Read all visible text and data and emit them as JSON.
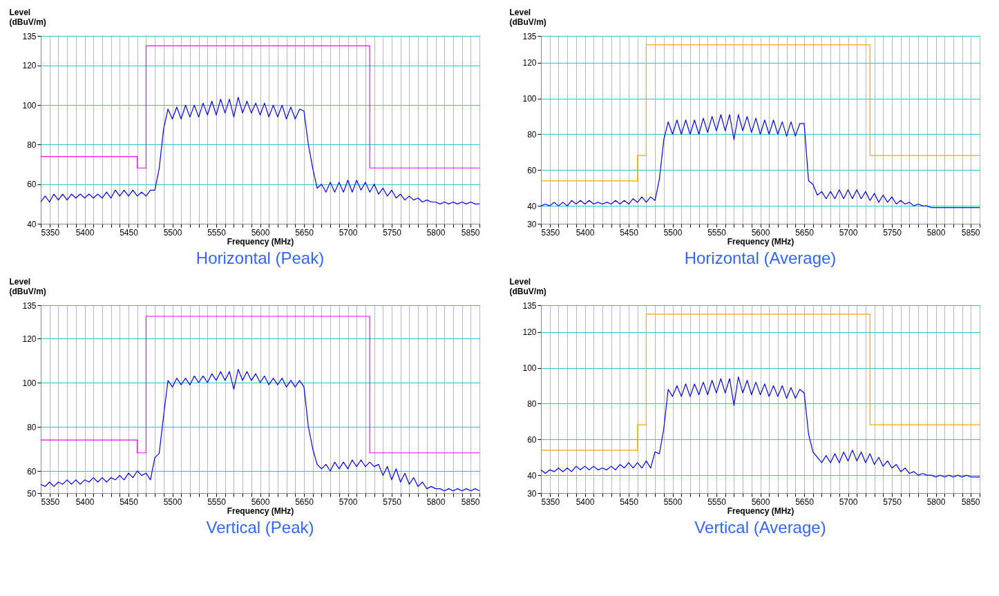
{
  "chart_data": [
    {
      "type": "line",
      "title": "Horizontal (Peak)",
      "xlabel": "Frequency (MHz)",
      "ylabel": "Level (dBuV/m)",
      "xlim": [
        5350,
        5850
      ],
      "ylim": [
        40,
        135
      ],
      "yticks": [
        40,
        60,
        80,
        100,
        120,
        135
      ],
      "xticks": [
        5350,
        {
          "value": 5360,
          "label": null
        },
        {
          "value": 5370,
          "label": null
        },
        {
          "value": 5380,
          "label": null
        },
        {
          "value": 5390,
          "label": null
        },
        5400,
        {
          "value": 5410,
          "label": null
        },
        {
          "value": 5420,
          "label": null
        },
        {
          "value": 5430,
          "label": null
        },
        {
          "value": 5440,
          "label": null
        },
        5450,
        {
          "value": 5460,
          "label": null
        },
        {
          "value": 5470,
          "label": null
        },
        {
          "value": 5480,
          "label": null
        },
        {
          "value": 5490,
          "label": null
        },
        5500,
        {
          "value": 5510,
          "label": null
        },
        {
          "value": 5520,
          "label": null
        },
        {
          "value": 5530,
          "label": null
        },
        {
          "value": 5540,
          "label": null
        },
        5550,
        {
          "value": 5560,
          "label": null
        },
        {
          "value": 5570,
          "label": null
        },
        {
          "value": 5580,
          "label": null
        },
        {
          "value": 5590,
          "label": null
        },
        5600,
        {
          "value": 5610,
          "label": null
        },
        {
          "value": 5620,
          "label": null
        },
        {
          "value": 5630,
          "label": null
        },
        {
          "value": 5640,
          "label": null
        },
        5650,
        {
          "value": 5660,
          "label": null
        },
        {
          "value": 5670,
          "label": null
        },
        {
          "value": 5680,
          "label": null
        },
        {
          "value": 5690,
          "label": null
        },
        5700,
        {
          "value": 5710,
          "label": null
        },
        {
          "value": 5720,
          "label": null
        },
        {
          "value": 5730,
          "label": null
        },
        {
          "value": 5740,
          "label": null
        },
        5750,
        {
          "value": 5760,
          "label": null
        },
        {
          "value": 5770,
          "label": null
        },
        {
          "value": 5780,
          "label": null
        },
        {
          "value": 5790,
          "label": null
        },
        5800,
        {
          "value": 5810,
          "label": null
        },
        {
          "value": 5820,
          "label": null
        },
        {
          "value": 5830,
          "label": null
        },
        {
          "value": 5840,
          "label": null
        },
        5850
      ],
      "grid": true,
      "x": [
        5350,
        5355,
        5360,
        5365,
        5370,
        5375,
        5380,
        5385,
        5390,
        5395,
        5400,
        5405,
        5410,
        5415,
        5420,
        5425,
        5430,
        5435,
        5440,
        5445,
        5450,
        5455,
        5460,
        5465,
        5470,
        5475,
        5480,
        5485,
        5490,
        5495,
        5500,
        5505,
        5510,
        5515,
        5520,
        5525,
        5530,
        5535,
        5540,
        5545,
        5550,
        5555,
        5560,
        5565,
        5570,
        5575,
        5580,
        5585,
        5590,
        5595,
        5600,
        5605,
        5610,
        5615,
        5620,
        5625,
        5630,
        5635,
        5640,
        5645,
        5650,
        5655,
        5660,
        5665,
        5670,
        5675,
        5680,
        5685,
        5690,
        5695,
        5700,
        5705,
        5710,
        5715,
        5720,
        5725,
        5730,
        5735,
        5740,
        5745,
        5750,
        5755,
        5760,
        5765,
        5770,
        5775,
        5780,
        5785,
        5790,
        5795,
        5800,
        5805,
        5810,
        5815,
        5820,
        5825,
        5830,
        5835,
        5840,
        5845,
        5850
      ],
      "series": [
        {
          "type": "step",
          "color": "#ff00ff",
          "x": [
            5350,
            5460,
            5470,
            5725,
            5850
          ],
          "values": [
            74,
            68.2,
            130,
            68.2,
            68.2
          ]
        },
        {
          "type": "line",
          "color": "#0000ff",
          "values": [
            51,
            54,
            51,
            55,
            52,
            55,
            52,
            55,
            53,
            55,
            53,
            55,
            53,
            55,
            53,
            56,
            53,
            57,
            54,
            57,
            54,
            57,
            54,
            56,
            54,
            57,
            57,
            68,
            88,
            98,
            93,
            99,
            93,
            100,
            94,
            100,
            94,
            101,
            95,
            102,
            95,
            103,
            96,
            103,
            94,
            104,
            96,
            102,
            96,
            101,
            95,
            101,
            94,
            100,
            94,
            100,
            93,
            99,
            93,
            98,
            97,
            80,
            68,
            58,
            60,
            56,
            61,
            56,
            61,
            56,
            62,
            56,
            62,
            57,
            61,
            56,
            60,
            55,
            58,
            54,
            57,
            53,
            55,
            52,
            54,
            52,
            53,
            51,
            52,
            51,
            51,
            50,
            51,
            50,
            51,
            50,
            51,
            50,
            51,
            50,
            50
          ]
        }
      ]
    },
    {
      "type": "line",
      "title": "Horizontal (Average)",
      "xlabel": "Frequency (MHz)",
      "ylabel": "Level (dBuV/m)",
      "xlim": [
        5350,
        5850
      ],
      "ylim": [
        30,
        135
      ],
      "yticks": [
        30,
        40,
        60,
        80,
        100,
        120,
        135
      ],
      "xticks": [
        5350,
        {
          "value": 5360,
          "label": null
        },
        {
          "value": 5370,
          "label": null
        },
        {
          "value": 5380,
          "label": null
        },
        {
          "value": 5390,
          "label": null
        },
        5400,
        {
          "value": 5410,
          "label": null
        },
        {
          "value": 5420,
          "label": null
        },
        {
          "value": 5430,
          "label": null
        },
        {
          "value": 5440,
          "label": null
        },
        5450,
        {
          "value": 5460,
          "label": null
        },
        {
          "value": 5470,
          "label": null
        },
        {
          "value": 5480,
          "label": null
        },
        {
          "value": 5490,
          "label": null
        },
        5500,
        {
          "value": 5510,
          "label": null
        },
        {
          "value": 5520,
          "label": null
        },
        {
          "value": 5530,
          "label": null
        },
        {
          "value": 5540,
          "label": null
        },
        5550,
        {
          "value": 5560,
          "label": null
        },
        {
          "value": 5570,
          "label": null
        },
        {
          "value": 5580,
          "label": null
        },
        {
          "value": 5590,
          "label": null
        },
        5600,
        {
          "value": 5610,
          "label": null
        },
        {
          "value": 5620,
          "label": null
        },
        {
          "value": 5630,
          "label": null
        },
        {
          "value": 5640,
          "label": null
        },
        5650,
        {
          "value": 5660,
          "label": null
        },
        {
          "value": 5670,
          "label": null
        },
        {
          "value": 5680,
          "label": null
        },
        {
          "value": 5690,
          "label": null
        },
        5700,
        {
          "value": 5710,
          "label": null
        },
        {
          "value": 5720,
          "label": null
        },
        {
          "value": 5730,
          "label": null
        },
        {
          "value": 5740,
          "label": null
        },
        5750,
        {
          "value": 5760,
          "label": null
        },
        {
          "value": 5770,
          "label": null
        },
        {
          "value": 5780,
          "label": null
        },
        {
          "value": 5790,
          "label": null
        },
        5800,
        {
          "value": 5810,
          "label": null
        },
        {
          "value": 5820,
          "label": null
        },
        {
          "value": 5830,
          "label": null
        },
        {
          "value": 5840,
          "label": null
        },
        5850
      ],
      "grid": true,
      "x": [
        5350,
        5355,
        5360,
        5365,
        5370,
        5375,
        5380,
        5385,
        5390,
        5395,
        5400,
        5405,
        5410,
        5415,
        5420,
        5425,
        5430,
        5435,
        5440,
        5445,
        5450,
        5455,
        5460,
        5465,
        5470,
        5475,
        5480,
        5485,
        5490,
        5495,
        5500,
        5505,
        5510,
        5515,
        5520,
        5525,
        5530,
        5535,
        5540,
        5545,
        5550,
        5555,
        5560,
        5565,
        5570,
        5575,
        5580,
        5585,
        5590,
        5595,
        5600,
        5605,
        5610,
        5615,
        5620,
        5625,
        5630,
        5635,
        5640,
        5645,
        5650,
        5655,
        5660,
        5665,
        5670,
        5675,
        5680,
        5685,
        5690,
        5695,
        5700,
        5705,
        5710,
        5715,
        5720,
        5725,
        5730,
        5735,
        5740,
        5745,
        5750,
        5755,
        5760,
        5765,
        5770,
        5775,
        5780,
        5785,
        5790,
        5795,
        5800,
        5805,
        5810,
        5815,
        5820,
        5825,
        5830,
        5835,
        5840,
        5845,
        5850
      ],
      "series": [
        {
          "type": "step",
          "color": "#ffa500",
          "x": [
            5350,
            5460,
            5470,
            5725,
            5850
          ],
          "values": [
            54,
            68.2,
            130,
            68.2,
            68.2
          ]
        },
        {
          "type": "line",
          "color": "#0000ff",
          "values": [
            40,
            41,
            40,
            42,
            40,
            42,
            40,
            43,
            41,
            43,
            41,
            43,
            41,
            42,
            41,
            42,
            41,
            43,
            41,
            43,
            41,
            44,
            42,
            45,
            42,
            45,
            43,
            55,
            77,
            87,
            80,
            88,
            80,
            88,
            80,
            88,
            80,
            89,
            81,
            90,
            82,
            91,
            82,
            91,
            77,
            91,
            82,
            90,
            81,
            89,
            80,
            88,
            80,
            88,
            80,
            87,
            79,
            87,
            79,
            86,
            86,
            54,
            52,
            46,
            48,
            44,
            48,
            44,
            49,
            44,
            49,
            44,
            49,
            44,
            48,
            43,
            47,
            42,
            46,
            42,
            45,
            41,
            43,
            41,
            42,
            40,
            41,
            40,
            40,
            39,
            39,
            39,
            39,
            39,
            39,
            39,
            39,
            39,
            39,
            39,
            39
          ]
        }
      ]
    },
    {
      "type": "line",
      "title": "Vertical (Peak)",
      "xlabel": "Frequency (MHz)",
      "ylabel": "Level (dBuV/m)",
      "xlim": [
        5350,
        5850
      ],
      "ylim": [
        50,
        135
      ],
      "yticks": [
        50,
        60,
        80,
        100,
        120,
        135
      ],
      "xticks": [
        5350,
        {
          "value": 5360,
          "label": null
        },
        {
          "value": 5370,
          "label": null
        },
        {
          "value": 5380,
          "label": null
        },
        {
          "value": 5390,
          "label": null
        },
        5400,
        {
          "value": 5410,
          "label": null
        },
        {
          "value": 5420,
          "label": null
        },
        {
          "value": 5430,
          "label": null
        },
        {
          "value": 5440,
          "label": null
        },
        5450,
        {
          "value": 5460,
          "label": null
        },
        {
          "value": 5470,
          "label": null
        },
        {
          "value": 5480,
          "label": null
        },
        {
          "value": 5490,
          "label": null
        },
        5500,
        {
          "value": 5510,
          "label": null
        },
        {
          "value": 5520,
          "label": null
        },
        {
          "value": 5530,
          "label": null
        },
        {
          "value": 5540,
          "label": null
        },
        5550,
        {
          "value": 5560,
          "label": null
        },
        {
          "value": 5570,
          "label": null
        },
        {
          "value": 5580,
          "label": null
        },
        {
          "value": 5590,
          "label": null
        },
        5600,
        {
          "value": 5610,
          "label": null
        },
        {
          "value": 5620,
          "label": null
        },
        {
          "value": 5630,
          "label": null
        },
        {
          "value": 5640,
          "label": null
        },
        5650,
        {
          "value": 5660,
          "label": null
        },
        {
          "value": 5670,
          "label": null
        },
        {
          "value": 5680,
          "label": null
        },
        {
          "value": 5690,
          "label": null
        },
        5700,
        {
          "value": 5710,
          "label": null
        },
        {
          "value": 5720,
          "label": null
        },
        {
          "value": 5730,
          "label": null
        },
        {
          "value": 5740,
          "label": null
        },
        5750,
        {
          "value": 5760,
          "label": null
        },
        {
          "value": 5770,
          "label": null
        },
        {
          "value": 5780,
          "label": null
        },
        {
          "value": 5790,
          "label": null
        },
        5800,
        {
          "value": 5810,
          "label": null
        },
        {
          "value": 5820,
          "label": null
        },
        {
          "value": 5830,
          "label": null
        },
        {
          "value": 5840,
          "label": null
        },
        5850
      ],
      "grid": true,
      "x": [
        5350,
        5355,
        5360,
        5365,
        5370,
        5375,
        5380,
        5385,
        5390,
        5395,
        5400,
        5405,
        5410,
        5415,
        5420,
        5425,
        5430,
        5435,
        5440,
        5445,
        5450,
        5455,
        5460,
        5465,
        5470,
        5475,
        5480,
        5485,
        5490,
        5495,
        5500,
        5505,
        5510,
        5515,
        5520,
        5525,
        5530,
        5535,
        5540,
        5545,
        5550,
        5555,
        5560,
        5565,
        5570,
        5575,
        5580,
        5585,
        5590,
        5595,
        5600,
        5605,
        5610,
        5615,
        5620,
        5625,
        5630,
        5635,
        5640,
        5645,
        5650,
        5655,
        5660,
        5665,
        5670,
        5675,
        5680,
        5685,
        5690,
        5695,
        5700,
        5705,
        5710,
        5715,
        5720,
        5725,
        5730,
        5735,
        5740,
        5745,
        5750,
        5755,
        5760,
        5765,
        5770,
        5775,
        5780,
        5785,
        5790,
        5795,
        5800,
        5805,
        5810,
        5815,
        5820,
        5825,
        5830,
        5835,
        5840,
        5845,
        5850
      ],
      "series": [
        {
          "type": "step",
          "color": "#ff00ff",
          "x": [
            5350,
            5460,
            5470,
            5725,
            5850
          ],
          "values": [
            74,
            68.2,
            130,
            68.2,
            68.2
          ]
        },
        {
          "type": "line",
          "color": "#0000ff",
          "values": [
            54,
            53,
            55,
            53,
            55,
            54,
            56,
            54,
            56,
            54,
            56,
            55,
            57,
            55,
            57,
            55,
            57,
            56,
            58,
            56,
            59,
            57,
            60,
            58,
            59,
            56,
            66,
            68,
            85,
            101,
            98,
            102,
            99,
            102,
            99,
            103,
            100,
            103,
            100,
            104,
            101,
            105,
            101,
            105,
            97,
            106,
            101,
            105,
            101,
            104,
            100,
            103,
            99,
            102,
            99,
            102,
            98,
            101,
            98,
            101,
            98,
            80,
            70,
            63,
            61,
            63,
            60,
            64,
            61,
            64,
            61,
            65,
            62,
            65,
            62,
            64,
            62,
            63,
            58,
            62,
            56,
            61,
            55,
            59,
            54,
            57,
            53,
            55,
            52,
            53,
            52,
            52,
            51,
            52,
            51,
            52,
            51,
            52,
            51,
            52,
            51
          ]
        }
      ]
    },
    {
      "type": "line",
      "title": "Vertical (Average)",
      "xlabel": "Frequency (MHz)",
      "ylabel": "Level (dBuV/m)",
      "xlim": [
        5350,
        5850
      ],
      "ylim": [
        30,
        135
      ],
      "yticks": [
        30,
        40,
        60,
        80,
        100,
        120,
        135
      ],
      "xticks": [
        5350,
        {
          "value": 5360,
          "label": null
        },
        {
          "value": 5370,
          "label": null
        },
        {
          "value": 5380,
          "label": null
        },
        {
          "value": 5390,
          "label": null
        },
        5400,
        {
          "value": 5410,
          "label": null
        },
        {
          "value": 5420,
          "label": null
        },
        {
          "value": 5430,
          "label": null
        },
        {
          "value": 5440,
          "label": null
        },
        5450,
        {
          "value": 5460,
          "label": null
        },
        {
          "value": 5470,
          "label": null
        },
        {
          "value": 5480,
          "label": null
        },
        {
          "value": 5490,
          "label": null
        },
        5500,
        {
          "value": 5510,
          "label": null
        },
        {
          "value": 5520,
          "label": null
        },
        {
          "value": 5530,
          "label": null
        },
        {
          "value": 5540,
          "label": null
        },
        5550,
        {
          "value": 5560,
          "label": null
        },
        {
          "value": 5570,
          "label": null
        },
        {
          "value": 5580,
          "label": null
        },
        {
          "value": 5590,
          "label": null
        },
        5600,
        {
          "value": 5610,
          "label": null
        },
        {
          "value": 5620,
          "label": null
        },
        {
          "value": 5630,
          "label": null
        },
        {
          "value": 5640,
          "label": null
        },
        5650,
        {
          "value": 5660,
          "label": null
        },
        {
          "value": 5670,
          "label": null
        },
        {
          "value": 5680,
          "label": null
        },
        {
          "value": 5690,
          "label": null
        },
        5700,
        {
          "value": 5710,
          "label": null
        },
        {
          "value": 5720,
          "label": null
        },
        {
          "value": 5730,
          "label": null
        },
        {
          "value": 5740,
          "label": null
        },
        5750,
        {
          "value": 5760,
          "label": null
        },
        {
          "value": 5770,
          "label": null
        },
        {
          "value": 5780,
          "label": null
        },
        {
          "value": 5790,
          "label": null
        },
        5800,
        {
          "value": 5810,
          "label": null
        },
        {
          "value": 5820,
          "label": null
        },
        {
          "value": 5830,
          "label": null
        },
        {
          "value": 5840,
          "label": null
        },
        5850
      ],
      "grid": true,
      "x": [
        5350,
        5355,
        5360,
        5365,
        5370,
        5375,
        5380,
        5385,
        5390,
        5395,
        5400,
        5405,
        5410,
        5415,
        5420,
        5425,
        5430,
        5435,
        5440,
        5445,
        5450,
        5455,
        5460,
        5465,
        5470,
        5475,
        5480,
        5485,
        5490,
        5495,
        5500,
        5505,
        5510,
        5515,
        5520,
        5525,
        5530,
        5535,
        5540,
        5545,
        5550,
        5555,
        5560,
        5565,
        5570,
        5575,
        5580,
        5585,
        5590,
        5595,
        5600,
        5605,
        5610,
        5615,
        5620,
        5625,
        5630,
        5635,
        5640,
        5645,
        5650,
        5655,
        5660,
        5665,
        5670,
        5675,
        5680,
        5685,
        5690,
        5695,
        5700,
        5705,
        5710,
        5715,
        5720,
        5725,
        5730,
        5735,
        5740,
        5745,
        5750,
        5755,
        5760,
        5765,
        5770,
        5775,
        5780,
        5785,
        5790,
        5795,
        5800,
        5805,
        5810,
        5815,
        5820,
        5825,
        5830,
        5835,
        5840,
        5845,
        5850
      ],
      "series": [
        {
          "type": "step",
          "color": "#ffa500",
          "x": [
            5350,
            5460,
            5470,
            5725,
            5850
          ],
          "values": [
            54,
            68.2,
            130,
            68.2,
            68.2
          ]
        },
        {
          "type": "line",
          "color": "#0000ff",
          "values": [
            43,
            41,
            43,
            42,
            44,
            42,
            44,
            42,
            45,
            43,
            45,
            43,
            45,
            43,
            44,
            43,
            45,
            43,
            46,
            44,
            47,
            44,
            47,
            44,
            48,
            44,
            53,
            52,
            66,
            88,
            84,
            90,
            84,
            91,
            84,
            91,
            85,
            92,
            85,
            93,
            86,
            94,
            86,
            94,
            79,
            95,
            86,
            93,
            85,
            92,
            85,
            91,
            84,
            90,
            84,
            90,
            83,
            89,
            83,
            88,
            86,
            63,
            53,
            50,
            47,
            51,
            47,
            52,
            47,
            53,
            48,
            54,
            48,
            53,
            47,
            52,
            46,
            50,
            45,
            48,
            44,
            46,
            42,
            44,
            41,
            42,
            40,
            41,
            40,
            40,
            39,
            40,
            39,
            40,
            39,
            40,
            39,
            40,
            39,
            39,
            39
          ]
        }
      ]
    }
  ]
}
